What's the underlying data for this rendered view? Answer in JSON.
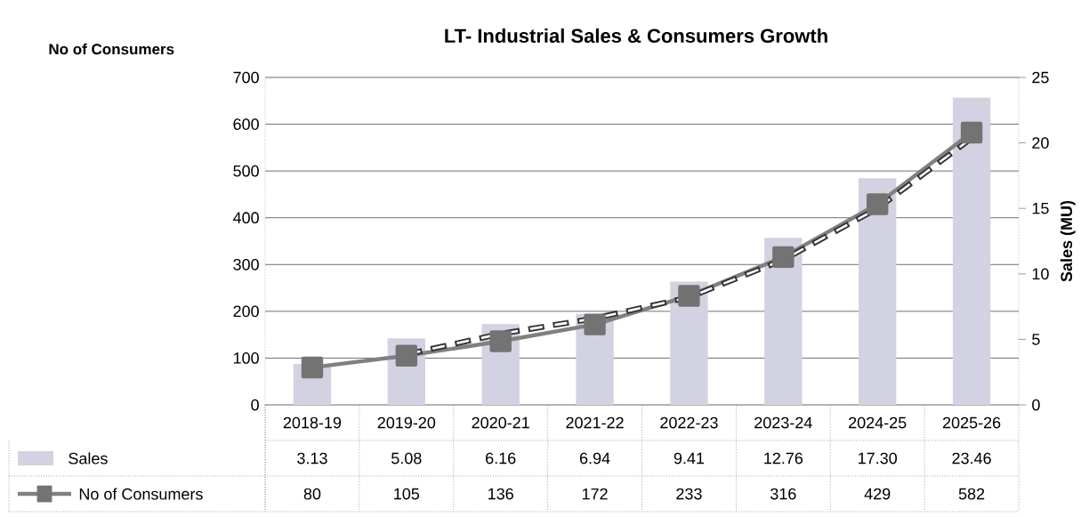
{
  "chart_data": {
    "type": "bar",
    "title": "LT- Industrial Sales & Consumers Growth",
    "ylabel": "No of Consumers",
    "y2label": "Sales (MU)",
    "categories": [
      "2018-19",
      "2019-20",
      "2020-21",
      "2021-22",
      "2022-23",
      "2023-24",
      "2024-25",
      "2025-26"
    ],
    "series": [
      {
        "name": "Sales",
        "axis": "y2",
        "color": "#d2d2e2",
        "values": [
          3.13,
          5.08,
          6.16,
          6.94,
          9.41,
          12.76,
          17.3,
          23.46
        ],
        "value_labels": [
          "3.13",
          "5.08",
          "6.16",
          "6.94",
          "9.41",
          "12.76",
          "17.30",
          "23.46"
        ]
      },
      {
        "name": "No of Consumers",
        "type": "line",
        "axis": "y",
        "color": "#808080",
        "marker": "square",
        "values": [
          80,
          105,
          136,
          172,
          233,
          316,
          429,
          582
        ],
        "value_labels": [
          "80",
          "105",
          "136",
          "172",
          "233",
          "316",
          "429",
          "582"
        ]
      },
      {
        "type": "line",
        "axis": "y",
        "color": "#333333",
        "marker": "none",
        "line_style": "dashed",
        "values": [
          null,
          108,
          152,
          185,
          230,
          310,
          420,
          570
        ]
      }
    ],
    "ylim": [
      0,
      700
    ],
    "yticks": [
      0,
      100,
      200,
      300,
      400,
      500,
      600,
      700
    ],
    "y2lim": [
      0,
      25
    ],
    "y2ticks": [
      0,
      5,
      10,
      15,
      20,
      25
    ],
    "grid": "y",
    "legend": "bottom"
  }
}
